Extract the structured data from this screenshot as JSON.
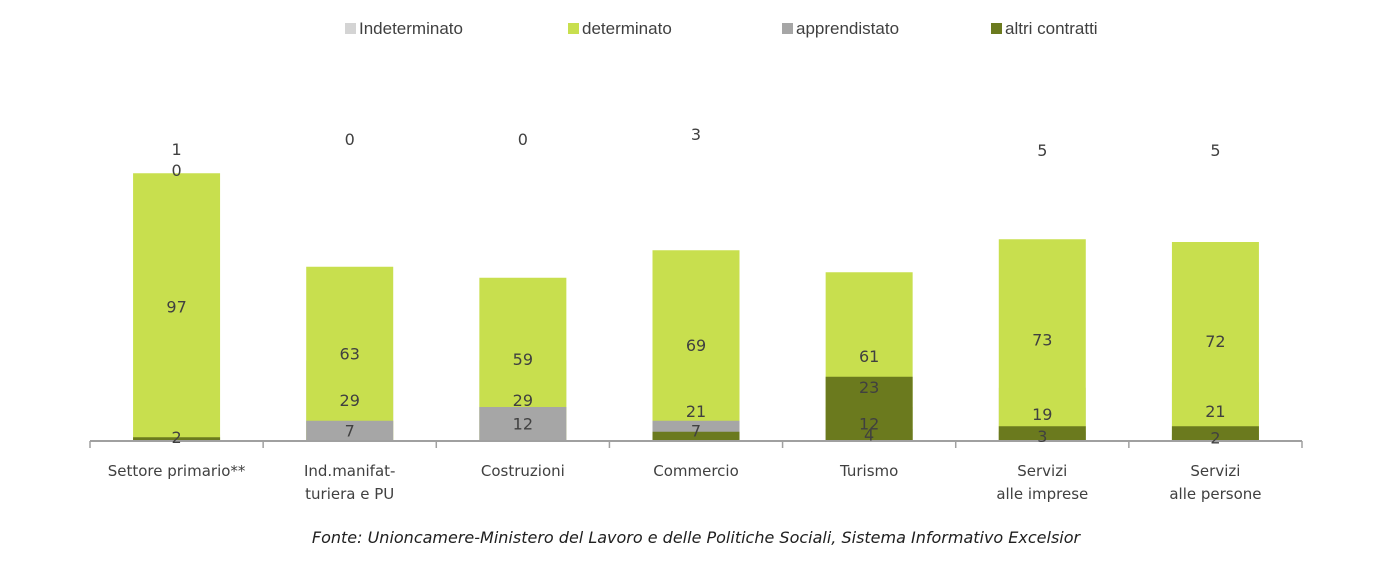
{
  "chart_data": {
    "type": "bar",
    "stacked": true,
    "title": "",
    "xlabel": "",
    "ylabel": "",
    "ylim": [
      0,
      100
    ],
    "grid": false,
    "legend_position": "top-center",
    "categories": [
      [
        "Settore primario**"
      ],
      [
        "Ind.manifat-",
        "turiera e PU"
      ],
      [
        "Costruzioni"
      ],
      [
        "Commercio"
      ],
      [
        "Turismo"
      ],
      [
        "Servizi",
        "alle imprese"
      ],
      [
        "Servizi",
        "alle persone"
      ]
    ],
    "series": [
      {
        "name": "Indeterminato",
        "color": "#d4d4d4",
        "values": [
          2,
          29,
          29,
          21,
          12,
          19,
          21
        ]
      },
      {
        "name": "determinato",
        "color": "#c8df4e",
        "values": [
          97,
          63,
          59,
          69,
          61,
          73,
          72
        ]
      },
      {
        "name": "apprendistato",
        "color": "#a6a6a6",
        "values": [
          0,
          7,
          12,
          7,
          4,
          3,
          2
        ]
      },
      {
        "name": "altri contratti",
        "color": "#6b7a1e",
        "values": [
          1,
          0,
          0,
          3,
          23,
          5,
          5
        ]
      }
    ]
  },
  "source_note": "Fonte: Unioncamere-Ministero del Lavoro e delle Politiche Sociali, Sistema Informativo Excelsior"
}
